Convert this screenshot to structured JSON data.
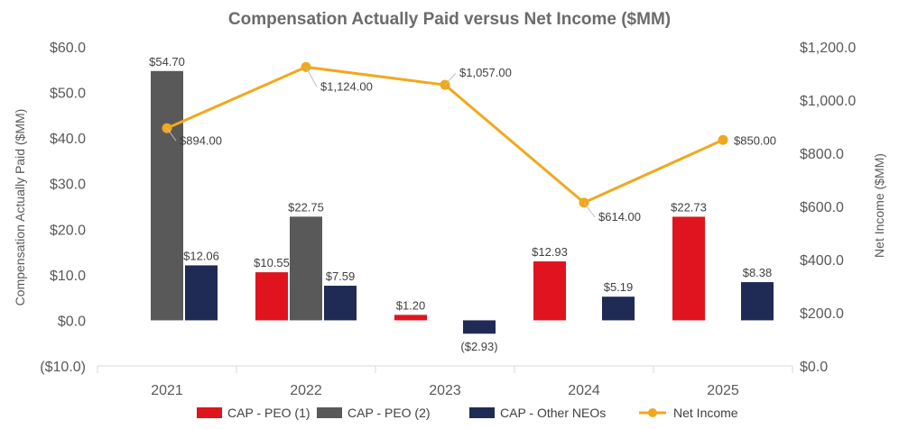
{
  "chart_data": {
    "type": "bar",
    "title": "Compensation Actually Paid versus Net Income ($MM)",
    "categories": [
      "2021",
      "2022",
      "2023",
      "2024",
      "2025"
    ],
    "series": [
      {
        "name": "CAP - PEO (1)",
        "kind": "bar",
        "color": "#e0141e",
        "values": [
          null,
          10.55,
          1.2,
          12.93,
          22.73
        ],
        "labels": [
          "",
          "$10.55",
          "$1.20",
          "$12.93",
          "$22.73"
        ]
      },
      {
        "name": "CAP - PEO (2)",
        "kind": "bar",
        "color": "#595959",
        "values": [
          54.7,
          22.75,
          null,
          null,
          null
        ],
        "labels": [
          "$54.70",
          "$22.75",
          "",
          "",
          ""
        ]
      },
      {
        "name": "CAP - Other NEOs",
        "kind": "bar",
        "color": "#1f2a55",
        "values": [
          12.06,
          7.59,
          -2.93,
          5.19,
          8.38
        ],
        "labels": [
          "$12.06",
          "$7.59",
          "($2.93)",
          "$5.19",
          "$8.38"
        ]
      },
      {
        "name": "Net Income",
        "kind": "line",
        "axis": "right",
        "color": "#f0a81e",
        "values": [
          894.0,
          1124.0,
          1057.0,
          614.0,
          850.0
        ],
        "labels": [
          "$894.00",
          "$1,124.00",
          "$1,057.00",
          "$614.00",
          "$850.00"
        ]
      }
    ],
    "ylabel": "Compensation Actually Paid ($MM)",
    "y2label": "Net Income ($MM)",
    "ylim": [
      -10,
      60
    ],
    "y2lim": [
      0,
      1200
    ],
    "yticks": [
      "($10.0)",
      "$0.0",
      "$10.0",
      "$20.0",
      "$30.0",
      "$40.0",
      "$50.0",
      "$60.0"
    ],
    "y2ticks": [
      "$0.0",
      "$200.0",
      "$400.0",
      "$600.0",
      "$800.0",
      "$1,000.0",
      "$1,200.0"
    ],
    "legend_position": "bottom",
    "grid": false
  }
}
